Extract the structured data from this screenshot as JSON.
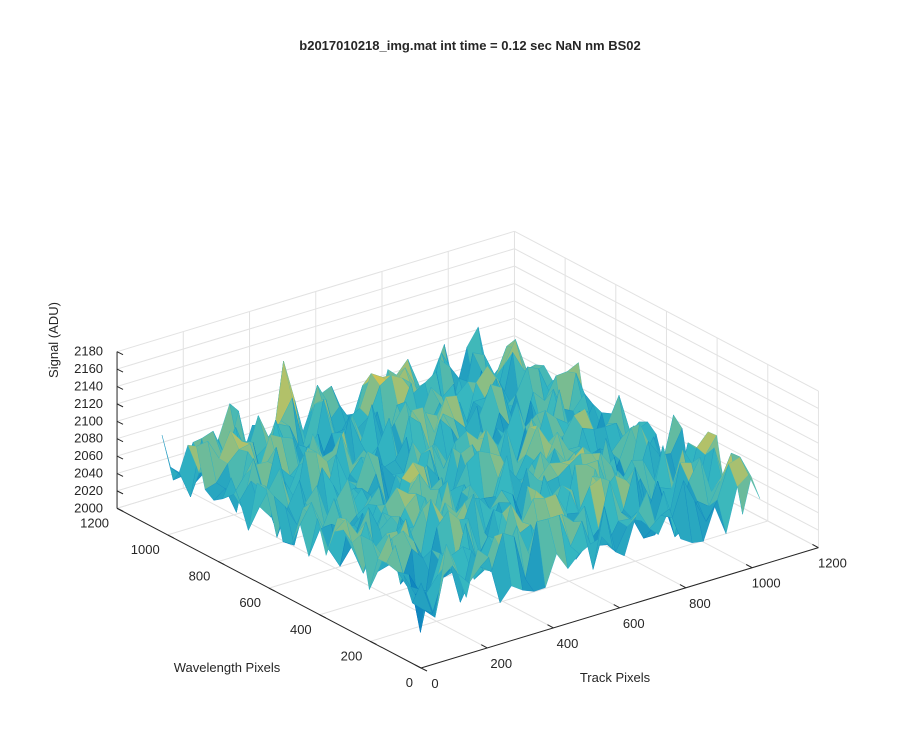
{
  "chart_data": {
    "type": "surface",
    "title": "b2017010218_img.mat int time = 0.12 sec  NaN nm BS02",
    "xlabel": "Track Pixels",
    "ylabel": "Wavelength Pixels",
    "zlabel": "Signal (ADU)",
    "xlim": [
      0,
      1200
    ],
    "ylim": [
      0,
      1200
    ],
    "zlim": [
      2000,
      2180
    ],
    "xticks": [
      "0",
      "200",
      "400",
      "600",
      "800",
      "1000",
      "1200"
    ],
    "yticks": [
      "0",
      "200",
      "400",
      "600",
      "800",
      "1000",
      "1200"
    ],
    "zticks": [
      "2000",
      "2020",
      "2040",
      "2060",
      "2080",
      "2100",
      "2120",
      "2140",
      "2160",
      "2180"
    ],
    "grid": true,
    "colormap": "parula",
    "colors": {
      "low": "#0072bd",
      "mid": "#35b7c1",
      "high": "#f4c63a",
      "grid": "#e2e2e2",
      "axis": "#262626"
    },
    "data_extent": {
      "x": [
        1,
        1024
      ],
      "y": [
        1,
        1024
      ]
    },
    "signal_summary": {
      "typical_range": [
        2040,
        2130
      ],
      "mean_approx": 2085,
      "max_spike_approx": 2162,
      "min_dip_approx": 2008
    }
  }
}
